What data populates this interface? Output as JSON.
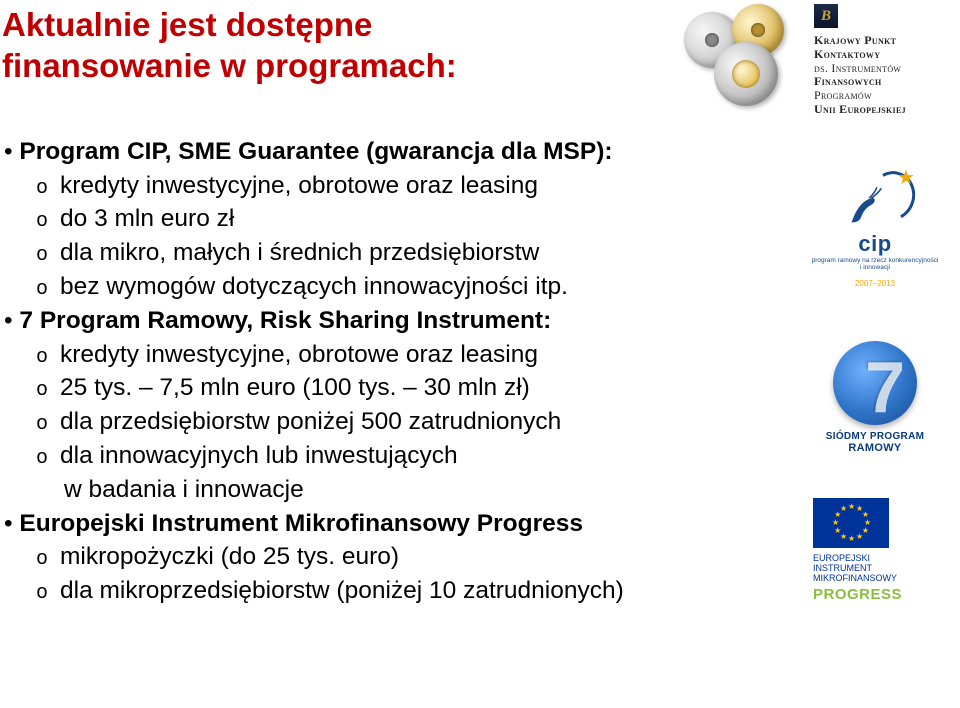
{
  "title": {
    "line1": "Aktualnie jest dostępne",
    "line2": "finansowanie w programach:",
    "color": "#c00000"
  },
  "kpk": {
    "badge": "B",
    "lines": [
      "Krajowy Punkt",
      "Kontaktowy",
      "ds. Instrumentów",
      "Finansowych",
      "Programów",
      "Unii Europejskiej"
    ]
  },
  "bullets": [
    {
      "head": "Program CIP, SME Guarantee (gwarancja dla MSP):",
      "subs": [
        "kredyty inwestycyjne, obrotowe oraz leasing",
        "do 3 mln euro zł",
        "dla mikro, małych i średnich przedsiębiorstw",
        "bez wymogów dotyczących innowacyjności itp."
      ]
    },
    {
      "head": "7 Program Ramowy, Risk Sharing Instrument:",
      "subs": [
        "kredyty inwestycyjne, obrotowe oraz leasing",
        "25 tys. – 7,5 mln euro (100 tys. – 30 mln zł)",
        "dla przedsiębiorstw poniżej 500 zatrudnionych",
        "dla innowacyjnych lub inwestujących\nw badania i innowacje"
      ]
    },
    {
      "head": "Europejski Instrument Mikrofinansowy Progress",
      "subs": [
        "mikropożyczki (do 25 tys. euro)",
        "dla mikroprzedsiębiorstw (poniżej 10 zatrudnionych)"
      ]
    }
  ],
  "cip": {
    "word": "cip",
    "sub": "program ramowy na rzecz konkurencyjności i innowacji",
    "years": "2007–2013",
    "arc_color": "#174a8a",
    "star_color": "#f2a900"
  },
  "fp7": {
    "digit": "7",
    "line1": "SIÓDMY PROGRAM",
    "line2": "RAMOWY",
    "bg_from": "#6fb1ff",
    "bg_to": "#164a8f"
  },
  "progress": {
    "line1": "EUROPEJSKI",
    "line2": "INSTRUMENT",
    "line3": "MIKROFINANSOWY",
    "word": "PROGRESS",
    "flag_bg": "#003399",
    "flag_star": "#ffcc00",
    "word_color": "#8bbf3f"
  }
}
